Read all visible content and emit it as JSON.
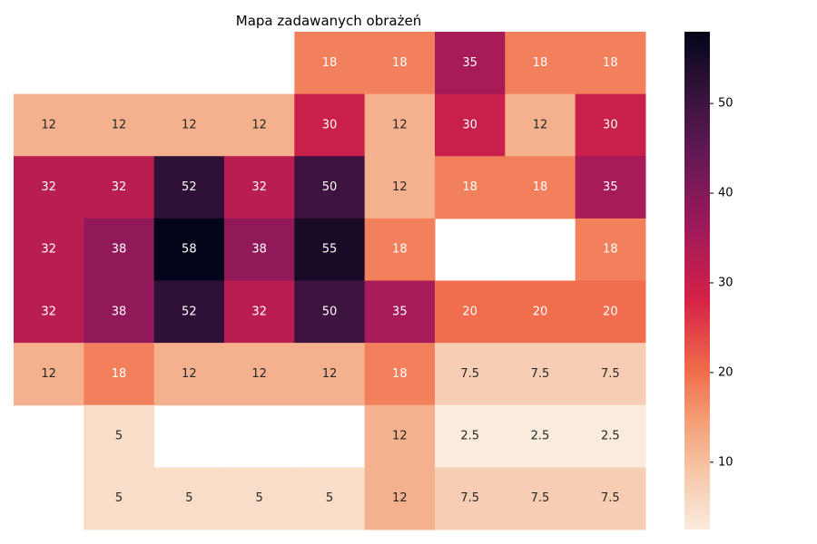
{
  "chart_data": {
    "type": "heatmap",
    "title": "Mapa zadawanych obrażeń",
    "xlabel": "",
    "ylabel": "",
    "rows": 8,
    "cols": 9,
    "values": [
      [
        null,
        null,
        null,
        null,
        18,
        18,
        35,
        18,
        18
      ],
      [
        12,
        12,
        12,
        12,
        30,
        12,
        30,
        12,
        30
      ],
      [
        32,
        32,
        52,
        32,
        50,
        12,
        18,
        18,
        35
      ],
      [
        32,
        38,
        58,
        38,
        55,
        18,
        null,
        null,
        18
      ],
      [
        32,
        38,
        52,
        32,
        50,
        35,
        20,
        20,
        20
      ],
      [
        12,
        18,
        12,
        12,
        12,
        18,
        7.5,
        7.5,
        7.5
      ],
      [
        null,
        5,
        null,
        null,
        null,
        12,
        2.5,
        2.5,
        2.5
      ],
      [
        null,
        5,
        5,
        5,
        5,
        12,
        7.5,
        7.5,
        7.5
      ]
    ],
    "colorbar": {
      "min": 2.5,
      "max": 58,
      "ticks": [
        10,
        20,
        30,
        40,
        50
      ],
      "colormap": "rocket_r"
    },
    "annotate": true,
    "grid": false
  }
}
